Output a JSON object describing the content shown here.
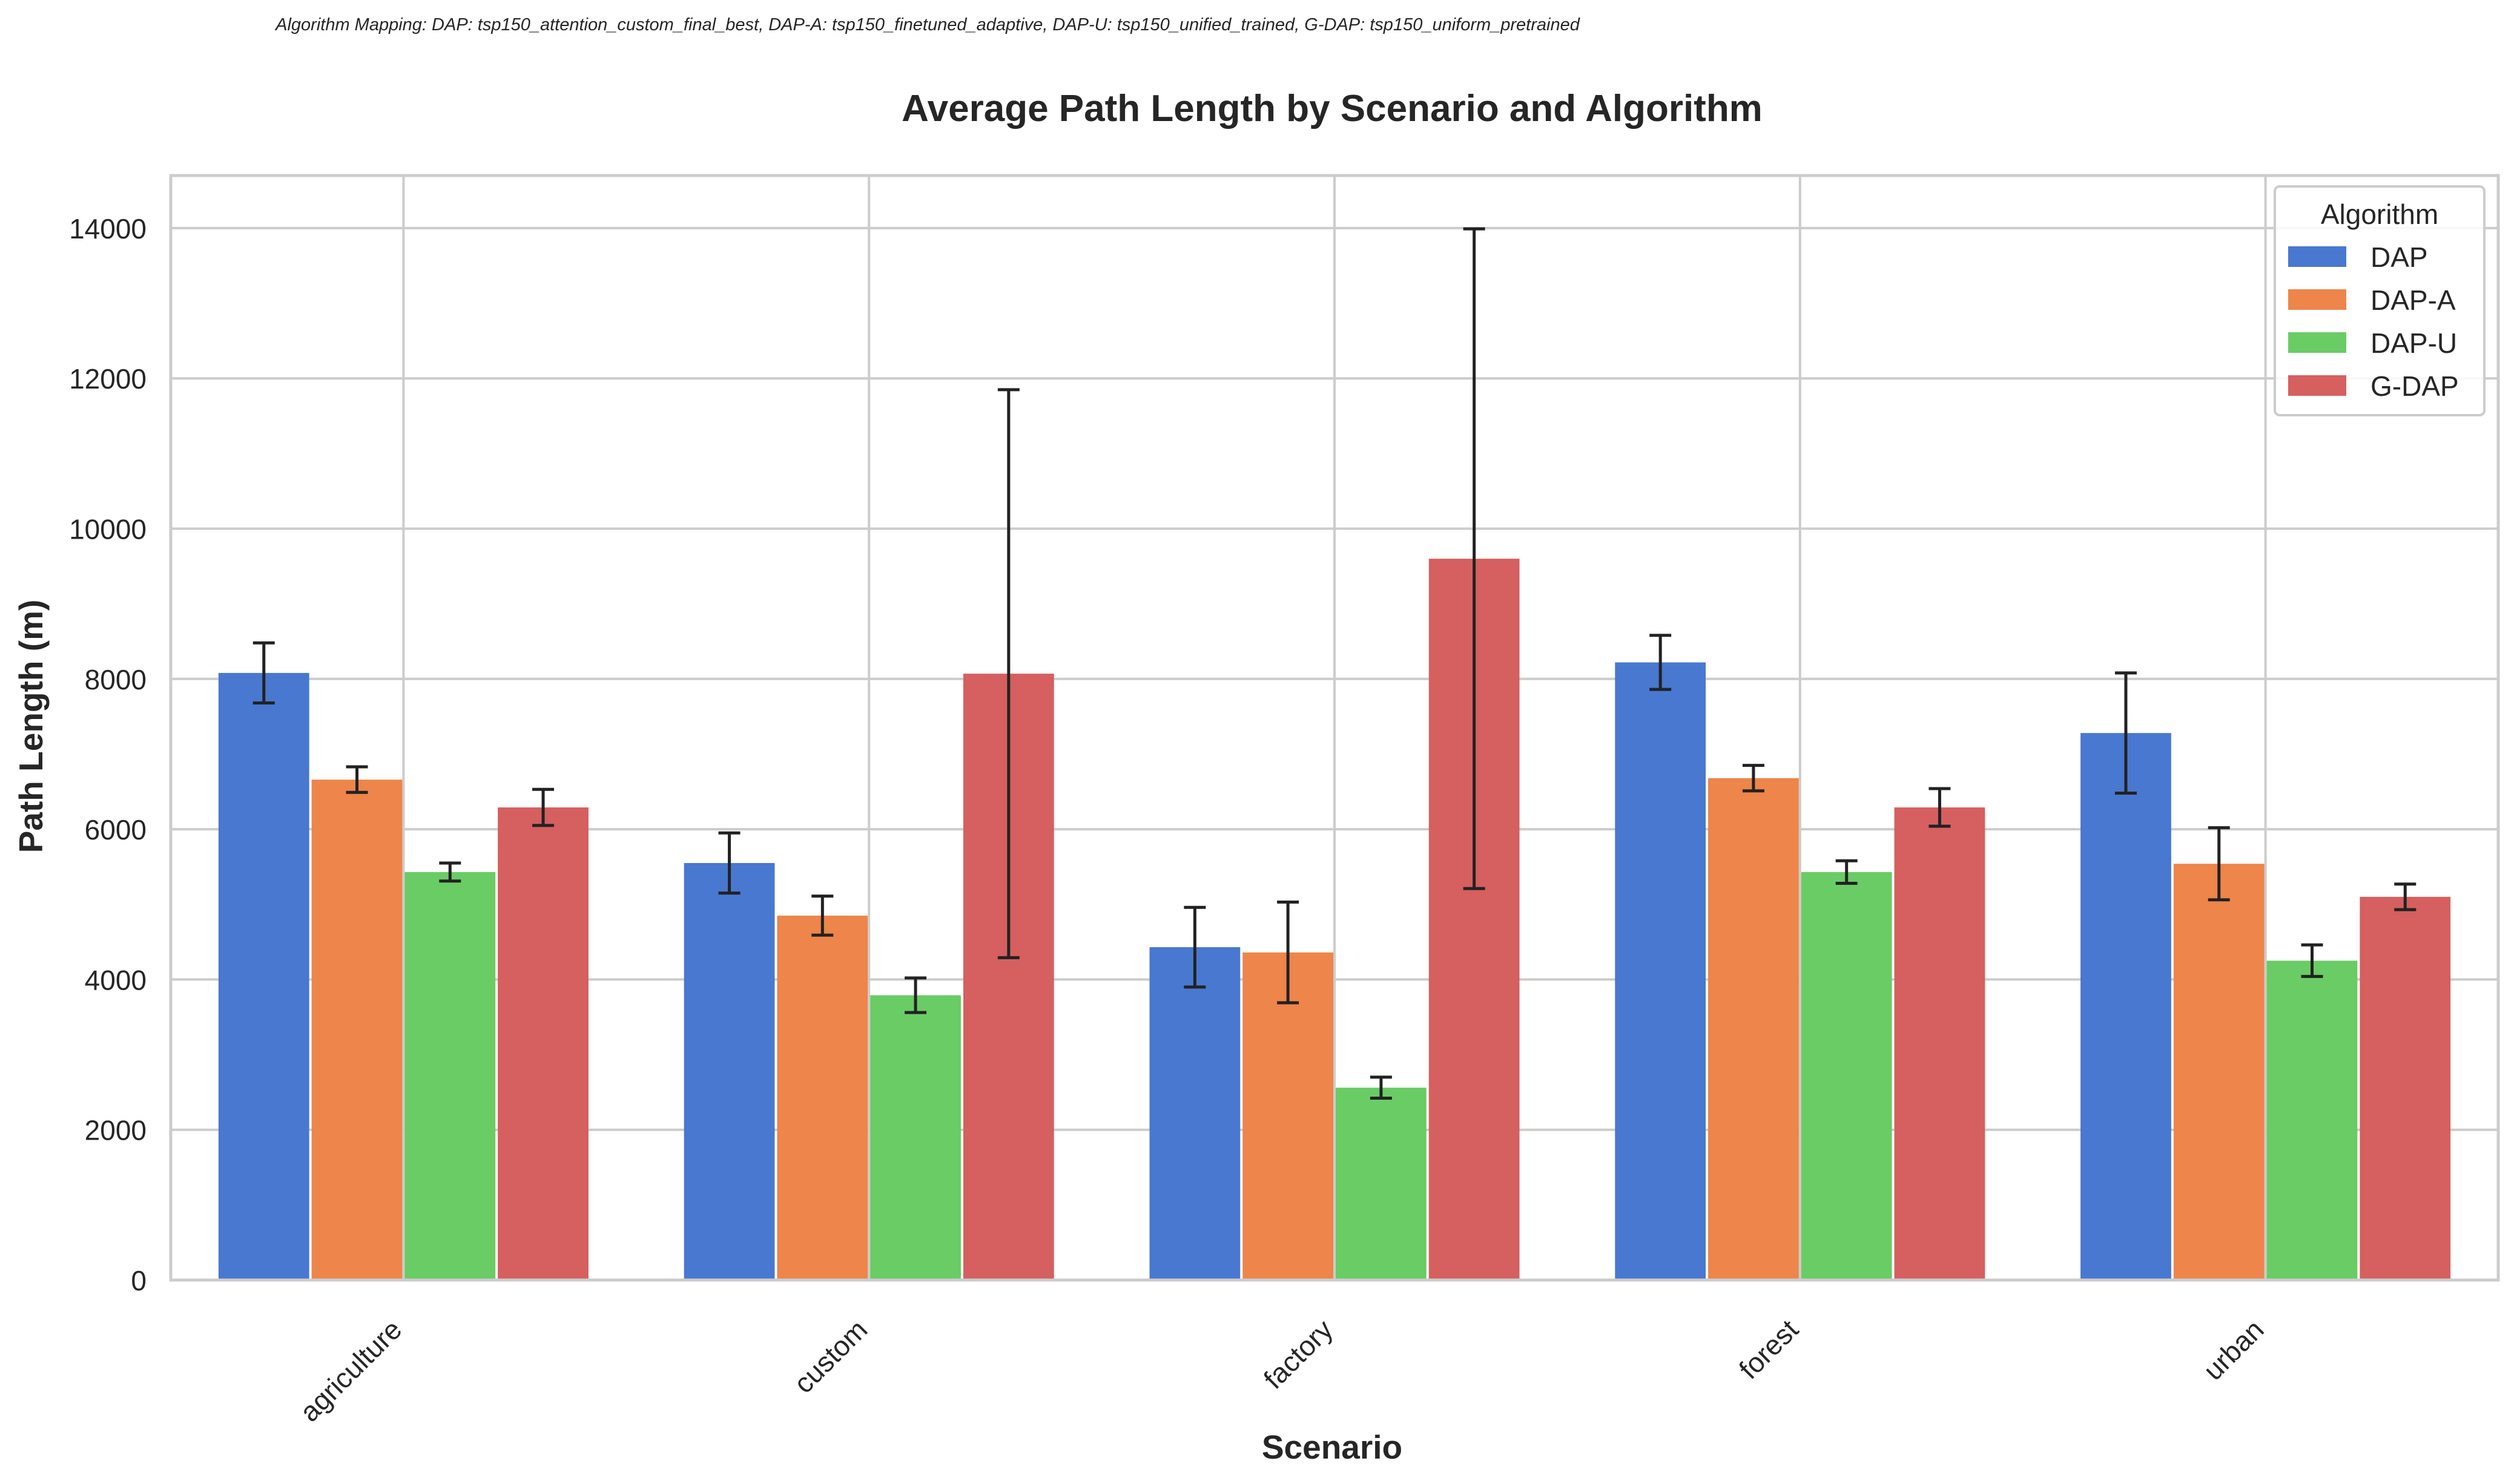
{
  "caption": "Algorithm Mapping: DAP: tsp150_attention_custom_final_best, DAP-A: tsp150_finetuned_adaptive, DAP-U: tsp150_unified_trained, G-DAP: tsp150_uniform_pretrained",
  "chart_data": {
    "type": "bar",
    "title": "Average Path Length by Scenario and Algorithm",
    "xlabel": "Scenario",
    "ylabel": "Path Length (m)",
    "ylim": [
      0,
      14700
    ],
    "yticks": [
      0,
      2000,
      4000,
      6000,
      8000,
      10000,
      12000,
      14000
    ],
    "grid": true,
    "legend": {
      "title": "Algorithm",
      "placement": "top-right"
    },
    "categories": [
      "agriculture",
      "custom",
      "factory",
      "forest",
      "urban"
    ],
    "series": [
      {
        "name": "DAP",
        "color": "#4878d0",
        "values": [
          8080,
          5550,
          4430,
          8220,
          7280
        ],
        "errors": [
          400,
          400,
          530,
          360,
          800
        ]
      },
      {
        "name": "DAP-A",
        "color": "#ee854a",
        "values": [
          6660,
          4850,
          4360,
          6680,
          5540
        ],
        "errors": [
          170,
          260,
          670,
          170,
          480
        ]
      },
      {
        "name": "DAP-U",
        "color": "#6acc64",
        "values": [
          5430,
          3790,
          2560,
          5430,
          4250
        ],
        "errors": [
          120,
          230,
          140,
          150,
          210
        ]
      },
      {
        "name": "G-DAP",
        "color": "#d65f5f",
        "values": [
          6290,
          8070,
          9600,
          6290,
          5100
        ],
        "errors": [
          240,
          3780,
          4390,
          250,
          170
        ]
      }
    ]
  }
}
